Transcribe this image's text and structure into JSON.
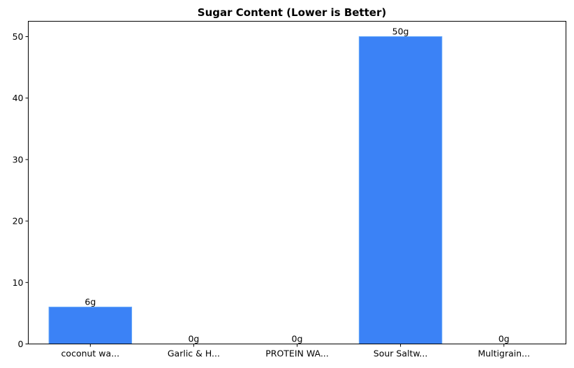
{
  "chart_data": {
    "type": "bar",
    "title": "Sugar Content (Lower is Better)",
    "xlabel": "",
    "ylabel": "",
    "categories": [
      "coconut wa...",
      "Garlic & H...",
      "PROTEIN WA...",
      "Sour Saltw...",
      "Multigrain..."
    ],
    "values": [
      6,
      0,
      0,
      50,
      0
    ],
    "data_labels": [
      "6g",
      "0g",
      "0g",
      "50g",
      "0g"
    ],
    "ylim": [
      0,
      52.5
    ],
    "yticks": [
      0,
      10,
      20,
      30,
      40,
      50
    ],
    "ytick_labels": [
      "0",
      "10",
      "20",
      "30",
      "40",
      "50"
    ],
    "bar_color": "#3b82f6",
    "bar_edge_color": "#60a5fa",
    "grid": false,
    "legend": false
  }
}
